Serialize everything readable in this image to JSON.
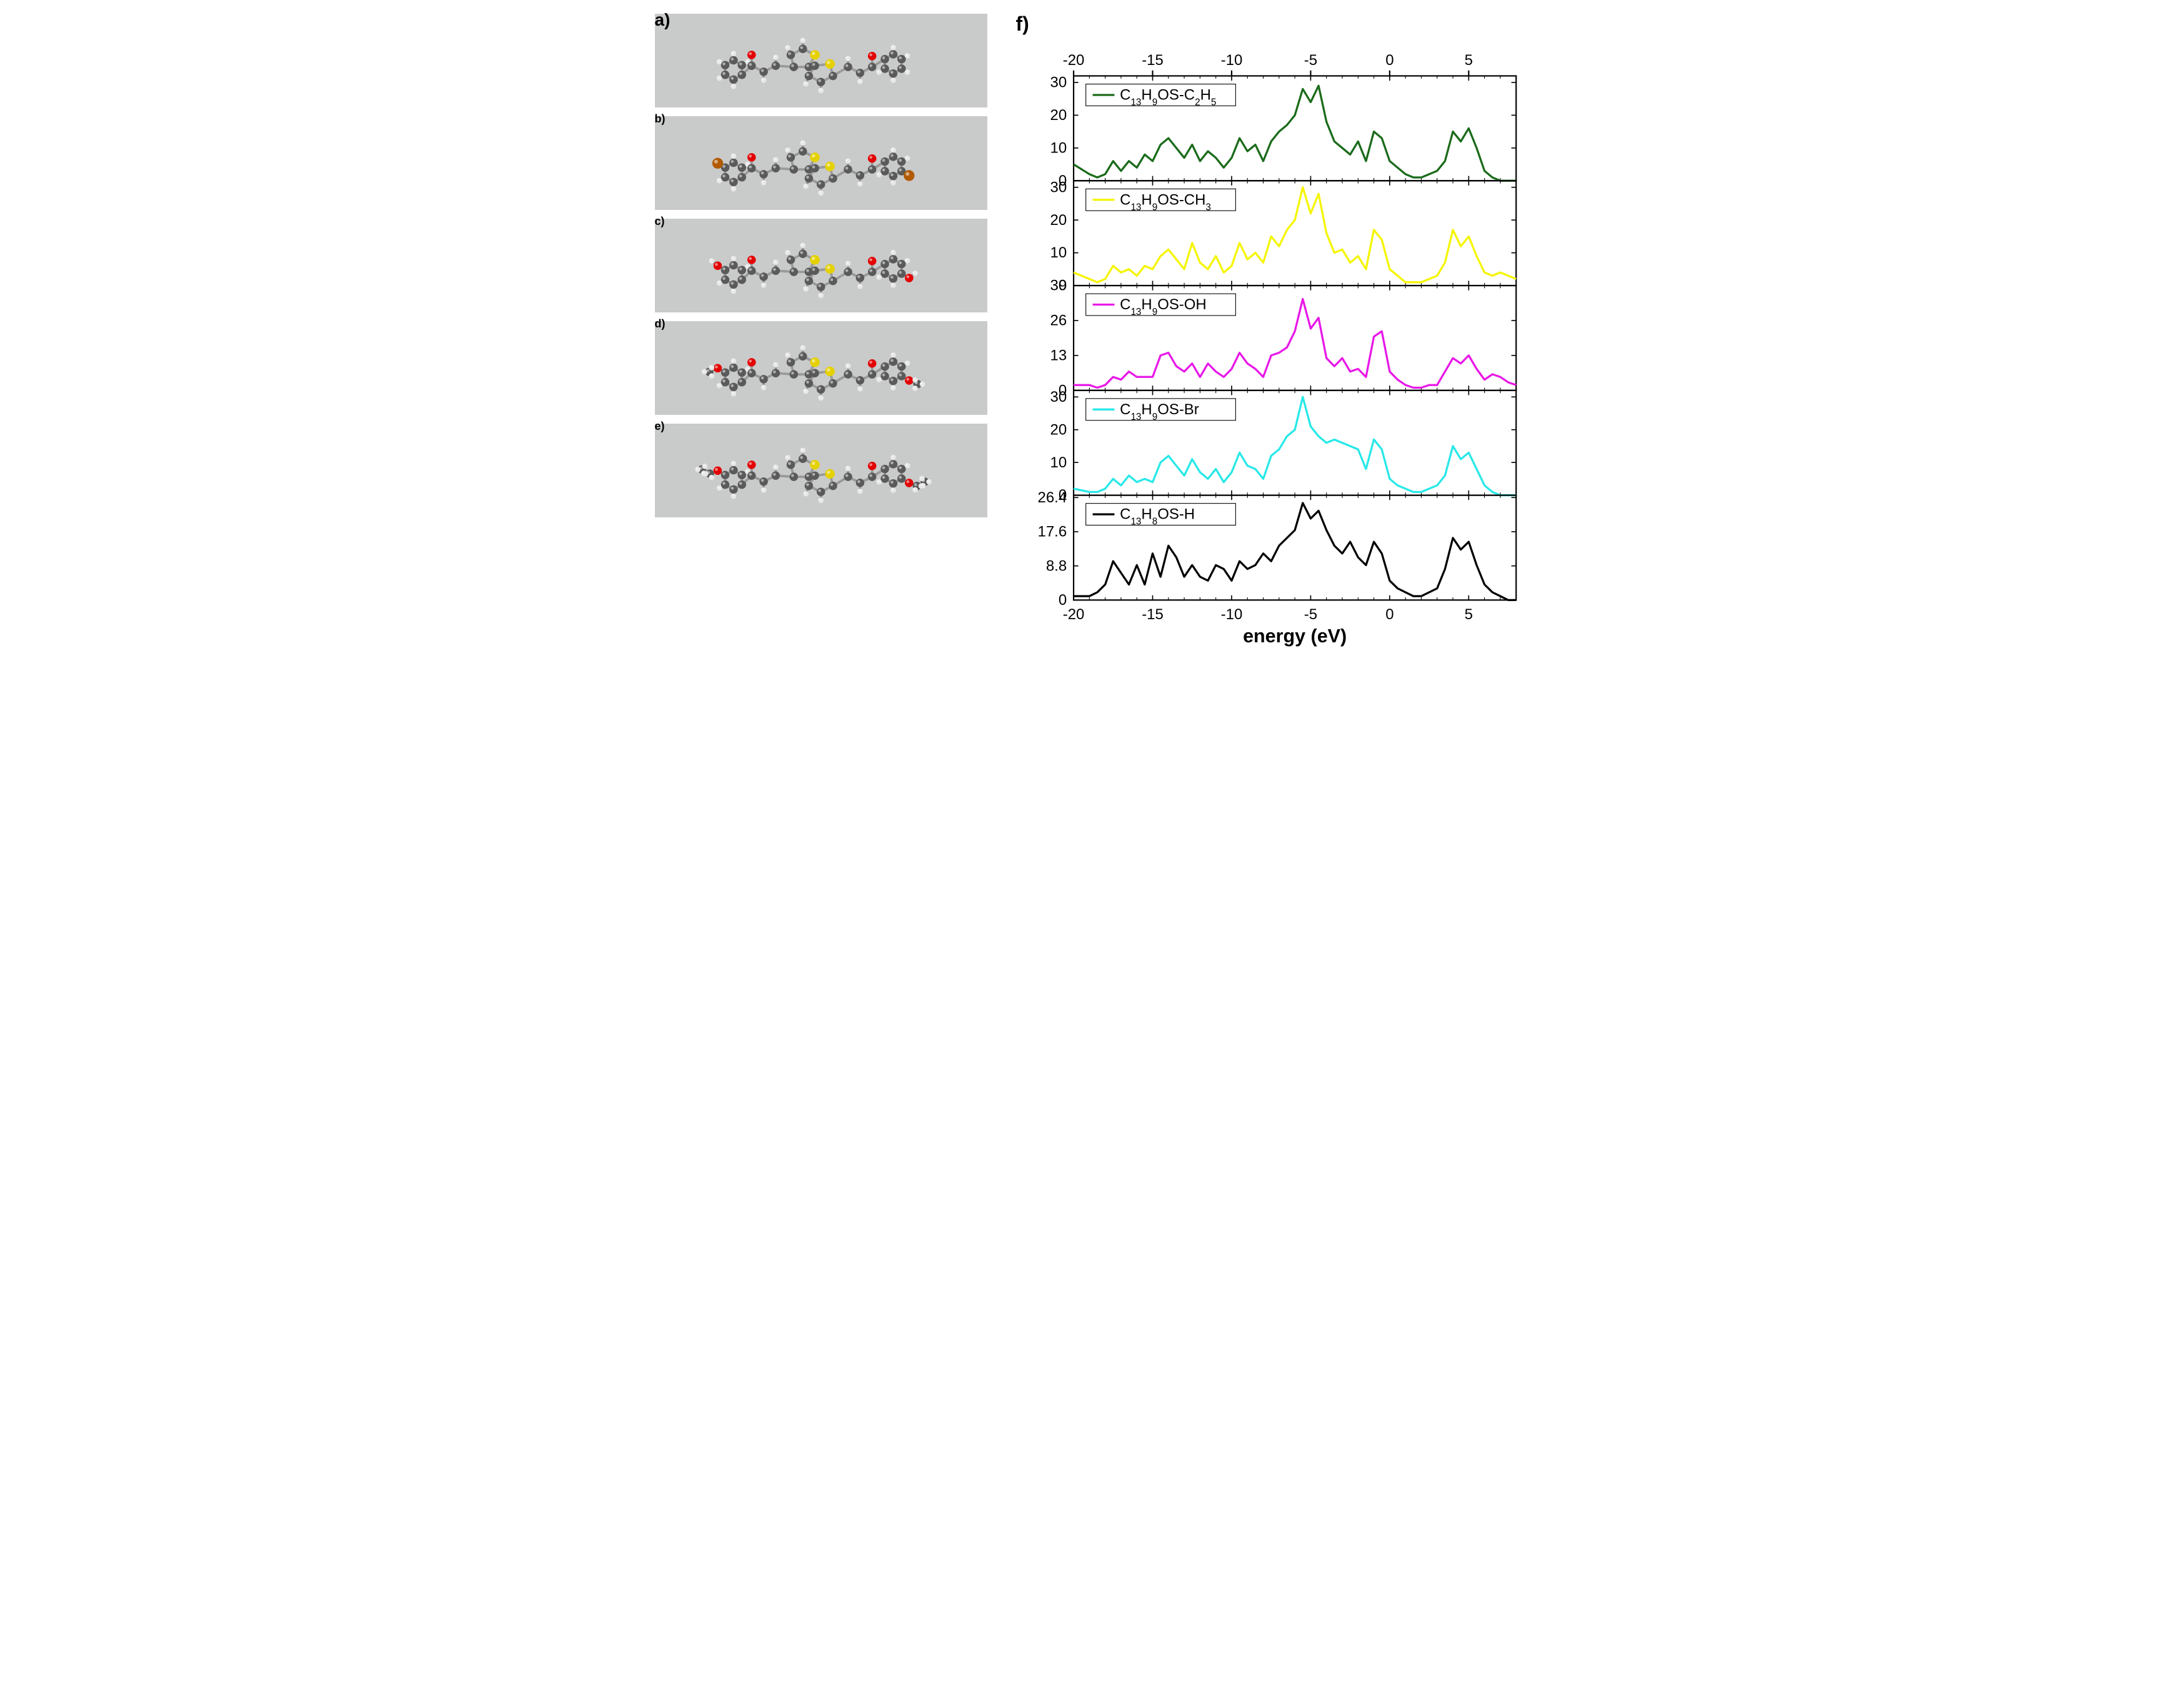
{
  "panels": {
    "a": {
      "label": "a)",
      "box_bg": "#c9caca"
    },
    "b": {
      "label": "b)",
      "box_bg": "#c9caca"
    },
    "c": {
      "label": "c)",
      "box_bg": "#c9caca"
    },
    "d": {
      "label": "d)",
      "box_bg": "#c9caca"
    },
    "e": {
      "label": "e)",
      "box_bg": "#c9caca"
    },
    "f": {
      "label": "f)"
    }
  },
  "molecule_colors": {
    "carbon": "#5a5a5a",
    "hydrogen": "#e8e8e8",
    "oxygen": "#e30000",
    "sulfur": "#e5d100",
    "bromine": "#b15a00",
    "bond": "#9a9a9a"
  },
  "chart": {
    "x_axis": {
      "title": "energy (eV)",
      "min": -20,
      "max": 8,
      "ticks": [
        -20,
        -15,
        -10,
        -5,
        0,
        5
      ],
      "tick_labels": [
        "-20",
        "-15",
        "-10",
        "-5",
        "0",
        "5"
      ]
    },
    "background": "#ffffff",
    "axis_color": "#000000",
    "line_width": 3,
    "subplots": [
      {
        "id": "c2h5",
        "legend_parts": [
          "C",
          "13",
          "H",
          "9",
          "OS-C",
          "2",
          "H",
          "5"
        ],
        "color": "#1a6b1a",
        "y_ticks": [
          0,
          10,
          20,
          30
        ],
        "ylim": [
          0,
          32
        ],
        "data": {
          "x": [
            -20,
            -19,
            -18.5,
            -18,
            -17.5,
            -17,
            -16.5,
            -16,
            -15.5,
            -15,
            -14.5,
            -14,
            -13.5,
            -13,
            -12.5,
            -12,
            -11.5,
            -11,
            -10.5,
            -10,
            -9.5,
            -9,
            -8.5,
            -8,
            -7.5,
            -7,
            -6.5,
            -6,
            -5.5,
            -5,
            -4.5,
            -4,
            -3.5,
            -3,
            -2.5,
            -2,
            -1.5,
            -1,
            -0.5,
            0,
            0.5,
            1,
            1.5,
            2,
            2.5,
            3,
            3.5,
            4,
            4.5,
            5,
            5.5,
            6,
            6.5,
            7,
            7.5,
            8
          ],
          "y": [
            5,
            2,
            1,
            2,
            6,
            3,
            6,
            4,
            8,
            6,
            11,
            13,
            10,
            7,
            11,
            6,
            9,
            7,
            4,
            7,
            13,
            9,
            11,
            6,
            12,
            15,
            17,
            20,
            28,
            24,
            29,
            18,
            12,
            10,
            8,
            12,
            6,
            15,
            13,
            6,
            4,
            2,
            1,
            1,
            2,
            3,
            6,
            15,
            12,
            16,
            10,
            3,
            1,
            0,
            0,
            0
          ]
        }
      },
      {
        "id": "ch3",
        "legend_parts": [
          "C",
          "13",
          "H",
          "9",
          "OS-CH",
          "3"
        ],
        "color": "#f5f500",
        "y_ticks": [
          0,
          10,
          20,
          30
        ],
        "ylim": [
          0,
          32
        ],
        "data": {
          "x": [
            -20,
            -19,
            -18.5,
            -18,
            -17.5,
            -17,
            -16.5,
            -16,
            -15.5,
            -15,
            -14.5,
            -14,
            -13.5,
            -13,
            -12.5,
            -12,
            -11.5,
            -11,
            -10.5,
            -10,
            -9.5,
            -9,
            -8.5,
            -8,
            -7.5,
            -7,
            -6.5,
            -6,
            -5.5,
            -5,
            -4.5,
            -4,
            -3.5,
            -3,
            -2.5,
            -2,
            -1.5,
            -1,
            -0.5,
            0,
            0.5,
            1,
            1.5,
            2,
            2.5,
            3,
            3.5,
            4,
            4.5,
            5,
            5.5,
            6,
            6.5,
            7,
            7.5,
            8
          ],
          "y": [
            4,
            2,
            1,
            2,
            6,
            4,
            5,
            3,
            6,
            5,
            9,
            11,
            8,
            5,
            13,
            7,
            5,
            9,
            4,
            6,
            13,
            8,
            10,
            7,
            15,
            12,
            17,
            20,
            30,
            22,
            28,
            16,
            10,
            11,
            7,
            9,
            5,
            17,
            14,
            5,
            3,
            1,
            1,
            1,
            2,
            3,
            7,
            17,
            12,
            15,
            9,
            4,
            3,
            4,
            3,
            2
          ]
        }
      },
      {
        "id": "oh",
        "legend_parts": [
          "C",
          "13",
          "H",
          "9",
          "OS-OH"
        ],
        "color": "#e818e8",
        "y_ticks": [
          0,
          13,
          26,
          39
        ],
        "ylim": [
          0,
          39
        ],
        "data": {
          "x": [
            -20,
            -19,
            -18.5,
            -18,
            -17.5,
            -17,
            -16.5,
            -16,
            -15.5,
            -15,
            -14.5,
            -14,
            -13.5,
            -13,
            -12.5,
            -12,
            -11.5,
            -11,
            -10.5,
            -10,
            -9.5,
            -9,
            -8.5,
            -8,
            -7.5,
            -7,
            -6.5,
            -6,
            -5.5,
            -5,
            -4.5,
            -4,
            -3.5,
            -3,
            -2.5,
            -2,
            -1.5,
            -1,
            -0.5,
            0,
            0.5,
            1,
            1.5,
            2,
            2.5,
            3,
            3.5,
            4,
            4.5,
            5,
            5.5,
            6,
            6.5,
            7,
            7.5,
            8
          ],
          "y": [
            2,
            2,
            1,
            2,
            5,
            4,
            7,
            5,
            5,
            5,
            13,
            14,
            9,
            7,
            10,
            5,
            10,
            7,
            5,
            8,
            14,
            10,
            8,
            5,
            13,
            14,
            16,
            22,
            34,
            23,
            27,
            12,
            9,
            12,
            7,
            8,
            5,
            20,
            22,
            7,
            4,
            2,
            1,
            1,
            2,
            2,
            7,
            12,
            10,
            13,
            8,
            4,
            6,
            5,
            3,
            2
          ]
        }
      },
      {
        "id": "br",
        "legend_parts": [
          "C",
          "13",
          "H",
          "9",
          "OS-Br"
        ],
        "color": "#28e8e8",
        "y_ticks": [
          0,
          10,
          20,
          30
        ],
        "ylim": [
          0,
          32
        ],
        "data": {
          "x": [
            -20,
            -19,
            -18.5,
            -18,
            -17.5,
            -17,
            -16.5,
            -16,
            -15.5,
            -15,
            -14.5,
            -14,
            -13.5,
            -13,
            -12.5,
            -12,
            -11.5,
            -11,
            -10.5,
            -10,
            -9.5,
            -9,
            -8.5,
            -8,
            -7.5,
            -7,
            -6.5,
            -6,
            -5.5,
            -5,
            -4.5,
            -4,
            -3.5,
            -3,
            -2.5,
            -2,
            -1.5,
            -1,
            -0.5,
            0,
            0.5,
            1,
            1.5,
            2,
            2.5,
            3,
            3.5,
            4,
            4.5,
            5,
            5.5,
            6,
            6.5,
            7,
            7.5,
            8
          ],
          "y": [
            2,
            1,
            1,
            2,
            5,
            3,
            6,
            4,
            5,
            4,
            10,
            12,
            9,
            6,
            11,
            7,
            5,
            8,
            4,
            7,
            13,
            9,
            8,
            5,
            12,
            14,
            18,
            20,
            30,
            21,
            18,
            16,
            17,
            16,
            15,
            14,
            8,
            17,
            14,
            5,
            3,
            2,
            1,
            1,
            2,
            3,
            6,
            15,
            11,
            13,
            8,
            3,
            1,
            0,
            0,
            0
          ]
        }
      },
      {
        "id": "h",
        "legend_parts": [
          "C",
          "13",
          "H",
          "8",
          "OS-H"
        ],
        "color": "#000000",
        "y_ticks": [
          0.0,
          8.8,
          17.6,
          26.4
        ],
        "ylim": [
          0,
          27
        ],
        "data": {
          "x": [
            -20,
            -19,
            -18.5,
            -18,
            -17.5,
            -17,
            -16.5,
            -16,
            -15.5,
            -15,
            -14.5,
            -14,
            -13.5,
            -13,
            -12.5,
            -12,
            -11.5,
            -11,
            -10.5,
            -10,
            -9.5,
            -9,
            -8.5,
            -8,
            -7.5,
            -7,
            -6.5,
            -6,
            -5.5,
            -5,
            -4.5,
            -4,
            -3.5,
            -3,
            -2.5,
            -2,
            -1.5,
            -1,
            -0.5,
            0,
            0.5,
            1,
            1.5,
            2,
            2.5,
            3,
            3.5,
            4,
            4.5,
            5,
            5.5,
            6,
            6.5,
            7,
            7.5,
            8
          ],
          "y": [
            1,
            1,
            2,
            4,
            10,
            7,
            4,
            9,
            4,
            12,
            6,
            14,
            11,
            6,
            9,
            6,
            5,
            9,
            8,
            5,
            10,
            8,
            9,
            12,
            10,
            14,
            16,
            18,
            25,
            21,
            23,
            18,
            14,
            12,
            15,
            11,
            9,
            15,
            12,
            5,
            3,
            2,
            1,
            1,
            2,
            3,
            8,
            16,
            13,
            15,
            9,
            4,
            2,
            1,
            0,
            0
          ]
        }
      }
    ]
  }
}
